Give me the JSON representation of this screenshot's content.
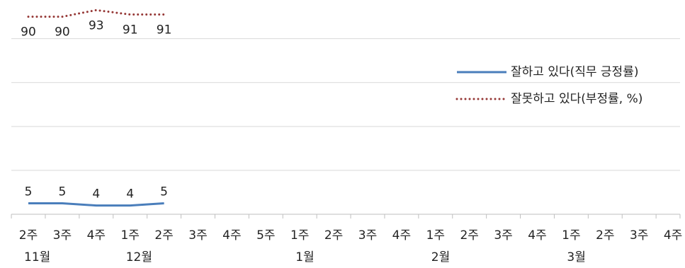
{
  "chart_data": {
    "type": "line",
    "categories": [
      "2주",
      "3주",
      "4주",
      "1주",
      "2주",
      "3주",
      "4주",
      "5주",
      "1주",
      "2주",
      "3주",
      "4주",
      "1주",
      "2주",
      "3주",
      "4주",
      "1주",
      "2주",
      "3주",
      "4주"
    ],
    "months": [
      "11월",
      null,
      null,
      "12월",
      null,
      null,
      null,
      null,
      "1월",
      null,
      null,
      null,
      "2월",
      null,
      null,
      null,
      "3월",
      null,
      null,
      null
    ],
    "series": [
      {
        "name": "잘하고 있다(직무 긍정률)",
        "color": "#4a7ebb",
        "style": "solid",
        "values": [
          5,
          5,
          4,
          4,
          5,
          null,
          null,
          null,
          null,
          null,
          null,
          null,
          null,
          null,
          null,
          null,
          null,
          null,
          null,
          null
        ]
      },
      {
        "name": "잘못하고 있다(부정률, %)",
        "color": "#953735",
        "style": "dotted",
        "values": [
          90,
          90,
          93,
          91,
          91,
          null,
          null,
          null,
          null,
          null,
          null,
          null,
          null,
          null,
          null,
          null,
          null,
          null,
          null,
          null
        ]
      }
    ],
    "ylim": [
      0,
      96
    ],
    "yticks": [
      0,
      20,
      40,
      60,
      80
    ],
    "grid": true
  }
}
